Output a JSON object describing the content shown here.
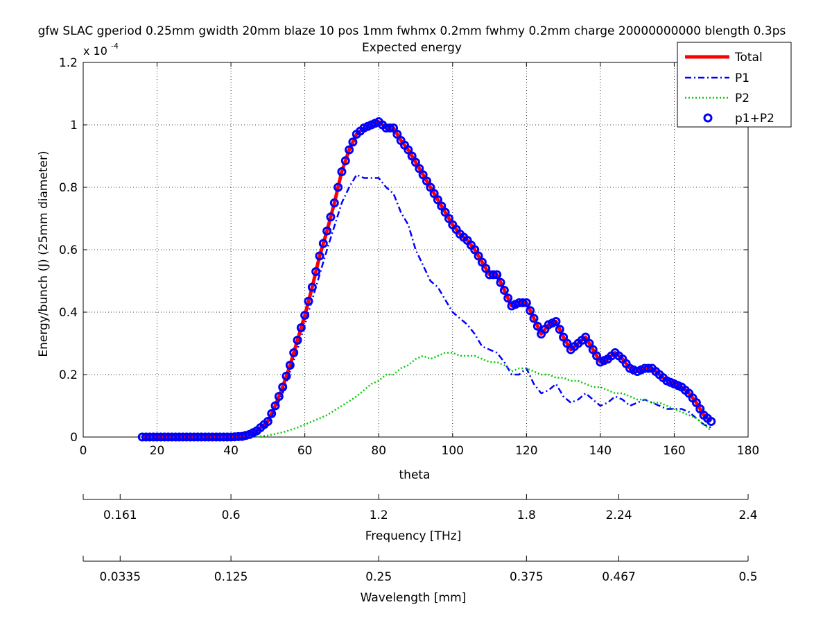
{
  "chart_data": {
    "type": "line",
    "title": "gfw SLAC gperiod 0.25mm gwidth 20mm blaze 10 pos 1mm fwhmx 0.2mm fwhmy 0.2mm charge 20000000000 blength 0.3ps",
    "subtitle": "Expected energy",
    "xlabel": "theta",
    "ylabel": "Energy/bunch (J) (25mm diameter)",
    "y_exponent_label": "x 10",
    "y_exponent_power": "-4",
    "xlim": [
      0,
      180
    ],
    "ylim": [
      0,
      1.2
    ],
    "grid": true,
    "legend_position": "top-right",
    "x_ticks": [
      "0",
      "20",
      "40",
      "60",
      "80",
      "100",
      "120",
      "140",
      "160",
      "180"
    ],
    "y_ticks": [
      "0",
      "0.2",
      "0.4",
      "0.6",
      "0.8",
      "1",
      "1.2"
    ],
    "secondary_axes": [
      {
        "label": "Frequency [THz]",
        "ticks": [
          "0.161",
          "0.6",
          "1.2",
          "1.8",
          "2.24",
          "2.4"
        ],
        "tick_theta": [
          10,
          40,
          80,
          120,
          145,
          180
        ]
      },
      {
        "label": "Wavelength [mm]",
        "ticks": [
          "0.0335",
          "0.125",
          "0.25",
          "0.375",
          "0.467",
          "0.5"
        ],
        "tick_theta": [
          10,
          40,
          80,
          120,
          145,
          180
        ]
      }
    ],
    "series": [
      {
        "name": "Total",
        "style": "solid",
        "color": "#ff0000",
        "x": [
          16,
          30,
          40,
          43,
          45,
          47,
          50,
          52,
          54,
          56,
          58,
          60,
          62,
          64,
          66,
          68,
          70,
          72,
          74,
          76,
          78,
          80,
          82,
          84,
          86,
          88,
          90,
          92,
          94,
          96,
          98,
          100,
          102,
          104,
          106,
          108,
          110,
          112,
          114,
          116,
          118,
          120,
          122,
          124,
          126,
          128,
          130,
          132,
          134,
          136,
          138,
          140,
          142,
          144,
          146,
          148,
          150,
          152,
          154,
          156,
          158,
          160,
          162,
          164,
          166,
          168,
          170
        ],
        "y": [
          0,
          0,
          0,
          0.002,
          0.008,
          0.02,
          0.05,
          0.1,
          0.16,
          0.23,
          0.31,
          0.39,
          0.48,
          0.58,
          0.66,
          0.75,
          0.85,
          0.92,
          0.97,
          0.99,
          1.0,
          1.01,
          0.99,
          0.99,
          0.95,
          0.92,
          0.88,
          0.84,
          0.8,
          0.76,
          0.72,
          0.68,
          0.65,
          0.63,
          0.6,
          0.56,
          0.52,
          0.52,
          0.47,
          0.42,
          0.43,
          0.43,
          0.38,
          0.33,
          0.36,
          0.37,
          0.32,
          0.28,
          0.3,
          0.32,
          0.28,
          0.24,
          0.25,
          0.27,
          0.25,
          0.22,
          0.21,
          0.22,
          0.22,
          0.2,
          0.18,
          0.17,
          0.16,
          0.14,
          0.11,
          0.07,
          0.05
        ]
      },
      {
        "name": "P1",
        "style": "dash-dot",
        "color": "#0000ff",
        "x": [
          46,
          50,
          54,
          58,
          62,
          66,
          70,
          72,
          74,
          76,
          78,
          80,
          82,
          84,
          86,
          88,
          90,
          92,
          94,
          96,
          98,
          100,
          102,
          104,
          106,
          108,
          110,
          112,
          114,
          116,
          118,
          120,
          122,
          124,
          126,
          128,
          130,
          132,
          134,
          136,
          138,
          140,
          142,
          144,
          146,
          148,
          150,
          152,
          154,
          156,
          158,
          160,
          162,
          164,
          166,
          168,
          170
        ],
        "y": [
          0.005,
          0.04,
          0.14,
          0.28,
          0.44,
          0.6,
          0.75,
          0.8,
          0.84,
          0.83,
          0.83,
          0.83,
          0.8,
          0.78,
          0.72,
          0.68,
          0.6,
          0.55,
          0.5,
          0.48,
          0.44,
          0.4,
          0.38,
          0.36,
          0.33,
          0.29,
          0.28,
          0.27,
          0.24,
          0.2,
          0.2,
          0.22,
          0.17,
          0.14,
          0.15,
          0.17,
          0.13,
          0.11,
          0.12,
          0.14,
          0.12,
          0.1,
          0.11,
          0.13,
          0.12,
          0.1,
          0.11,
          0.12,
          0.11,
          0.1,
          0.09,
          0.09,
          0.09,
          0.08,
          0.06,
          0.04,
          0.03
        ]
      },
      {
        "name": "P2",
        "style": "dotted",
        "color": "#00cc00",
        "x": [
          46,
          50,
          54,
          58,
          62,
          66,
          70,
          74,
          78,
          80,
          82,
          84,
          86,
          88,
          90,
          92,
          94,
          96,
          98,
          100,
          102,
          104,
          106,
          108,
          110,
          112,
          114,
          116,
          118,
          120,
          122,
          124,
          126,
          128,
          130,
          132,
          134,
          136,
          138,
          140,
          142,
          144,
          146,
          148,
          150,
          152,
          154,
          156,
          158,
          160,
          162,
          164,
          166,
          168,
          170
        ],
        "y": [
          0.0,
          0.005,
          0.015,
          0.03,
          0.05,
          0.07,
          0.1,
          0.13,
          0.17,
          0.18,
          0.2,
          0.2,
          0.22,
          0.23,
          0.25,
          0.26,
          0.25,
          0.26,
          0.27,
          0.27,
          0.26,
          0.26,
          0.26,
          0.25,
          0.24,
          0.24,
          0.23,
          0.21,
          0.22,
          0.22,
          0.21,
          0.2,
          0.2,
          0.19,
          0.19,
          0.18,
          0.18,
          0.17,
          0.16,
          0.16,
          0.15,
          0.14,
          0.14,
          0.13,
          0.12,
          0.12,
          0.11,
          0.11,
          0.1,
          0.09,
          0.08,
          0.07,
          0.06,
          0.04,
          0.02
        ]
      },
      {
        "name": "p1+P2",
        "style": "markers",
        "color": "#0000ff",
        "x": [
          16,
          30,
          40,
          43,
          45,
          47,
          50,
          52,
          54,
          56,
          58,
          60,
          62,
          64,
          66,
          68,
          70,
          72,
          74,
          76,
          78,
          80,
          82,
          84,
          86,
          88,
          90,
          92,
          94,
          96,
          98,
          100,
          102,
          104,
          106,
          108,
          110,
          112,
          114,
          116,
          118,
          120,
          122,
          124,
          126,
          128,
          130,
          132,
          134,
          136,
          138,
          140,
          142,
          144,
          146,
          148,
          150,
          152,
          154,
          156,
          158,
          160,
          162,
          164,
          166,
          168,
          170
        ],
        "y": [
          0,
          0,
          0,
          0.002,
          0.008,
          0.02,
          0.05,
          0.1,
          0.16,
          0.23,
          0.31,
          0.39,
          0.48,
          0.58,
          0.66,
          0.75,
          0.85,
          0.92,
          0.97,
          0.99,
          1.0,
          1.01,
          0.99,
          0.99,
          0.95,
          0.92,
          0.88,
          0.84,
          0.8,
          0.76,
          0.72,
          0.68,
          0.65,
          0.63,
          0.6,
          0.56,
          0.52,
          0.52,
          0.47,
          0.42,
          0.43,
          0.43,
          0.38,
          0.33,
          0.36,
          0.37,
          0.32,
          0.28,
          0.3,
          0.32,
          0.28,
          0.24,
          0.25,
          0.27,
          0.25,
          0.22,
          0.21,
          0.22,
          0.22,
          0.2,
          0.18,
          0.17,
          0.16,
          0.14,
          0.11,
          0.07,
          0.05
        ]
      }
    ]
  }
}
